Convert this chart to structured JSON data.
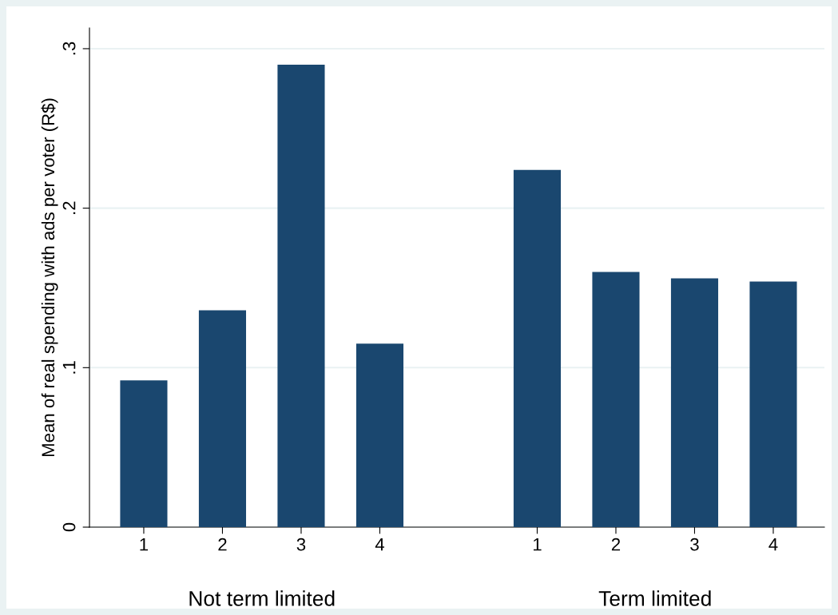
{
  "chart_data": {
    "type": "bar",
    "ylabel": "Mean of real spending with ads per voter (R$)",
    "categories": [
      "1",
      "2",
      "3",
      "4",
      null,
      "1",
      "2",
      "3",
      "4"
    ],
    "values": [
      0.092,
      0.136,
      0.29,
      0.115,
      null,
      0.224,
      0.16,
      0.156,
      0.154
    ],
    "color": "#1a476f",
    "ylim": [
      0,
      0.313
    ],
    "yticks": [
      {
        "value": 0,
        "label": "0"
      },
      {
        "value": 0.1,
        "label": ".1"
      },
      {
        "value": 0.2,
        "label": ".2"
      },
      {
        "value": 0.3,
        "label": ".3"
      }
    ],
    "grid": "y",
    "annotations": [
      "Not term limited",
      "Term limited"
    ]
  }
}
